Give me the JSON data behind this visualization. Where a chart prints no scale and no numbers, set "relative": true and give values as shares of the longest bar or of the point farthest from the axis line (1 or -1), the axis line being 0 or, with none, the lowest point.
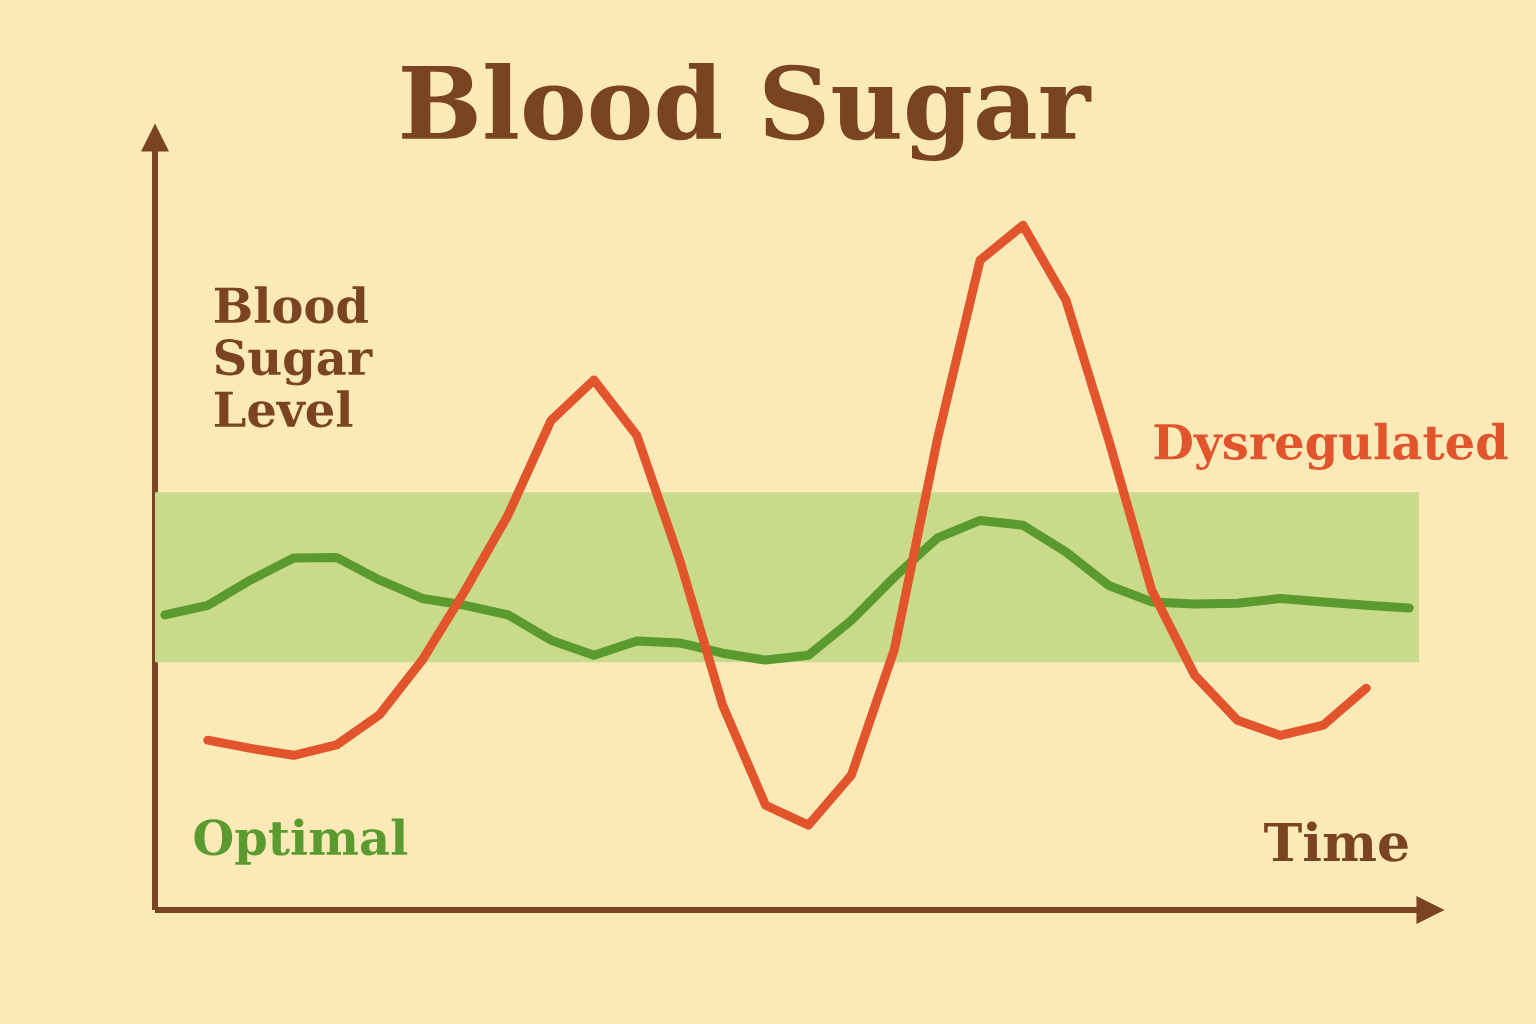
{
  "chart_data": {
    "type": "line",
    "title": "Blood Sugar",
    "xlabel": "Time",
    "ylabel": "Blood Sugar Level",
    "relative": true,
    "marker": "none",
    "line_style": "solid",
    "categories": [
      null,
      null,
      null,
      null,
      null,
      null,
      null,
      null,
      null,
      null,
      null,
      null,
      null,
      null,
      null,
      null,
      null,
      null,
      null,
      null,
      null,
      null,
      null,
      null,
      null,
      null,
      null,
      null,
      null,
      null
    ],
    "bands": [
      {
        "axis": "y",
        "from": 0.362,
        "to": 0.61,
        "color": "#c9da8a"
      }
    ],
    "series": [
      {
        "name": "Optimal",
        "color": "#5a9a2e",
        "values": [
          0.431,
          0.445,
          0.482,
          0.514,
          0.515,
          0.482,
          0.455,
          0.445,
          0.431,
          0.394,
          0.372,
          0.393,
          0.39,
          0.375,
          0.365,
          0.372,
          0.423,
          0.486,
          0.543,
          0.569,
          0.562,
          0.523,
          0.474,
          0.45,
          0.447,
          0.448,
          0.455,
          0.45,
          0.445,
          0.441
        ]
      },
      {
        "name": "Dysregulated",
        "color": "#e2542c",
        "values": [
          null,
          0.248,
          0.236,
          0.226,
          0.241,
          0.285,
          0.365,
          0.467,
          0.577,
          0.715,
          0.774,
          0.693,
          0.511,
          0.299,
          0.153,
          0.124,
          0.197,
          0.38,
          0.686,
          0.949,
          1.0,
          0.891,
          0.686,
          0.467,
          0.343,
          0.277,
          0.255,
          0.27,
          0.324,
          null
        ]
      }
    ]
  }
}
